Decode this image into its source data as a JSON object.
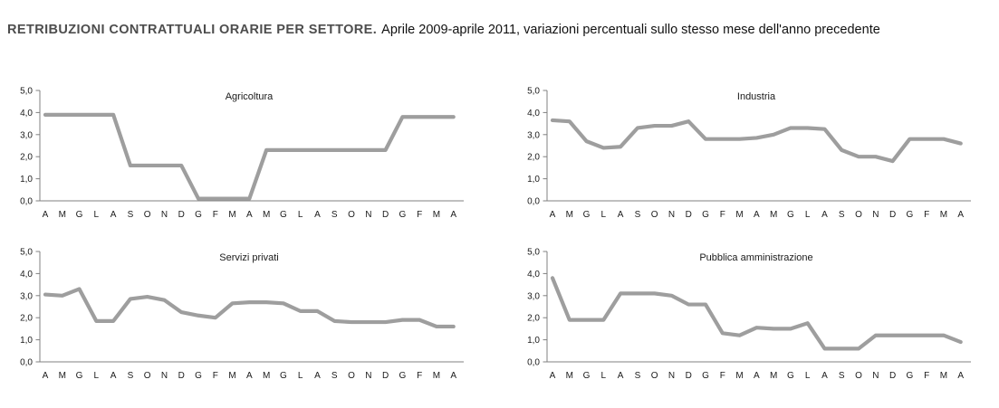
{
  "header": {
    "title_bold": "RETRIBUZIONI CONTRATTUALI ORARIE PER SETTORE.",
    "title_rest": "Aprile 2009-aprile 2011, variazioni percentuali sullo stesso mese dell'anno precedente"
  },
  "axis": {
    "y_tick_labels": [
      "5,0",
      "4,0",
      "3,0",
      "2,0",
      "1,0",
      "0,0"
    ],
    "y_tick_values": [
      5,
      4,
      3,
      2,
      1,
      0
    ],
    "x_labels": [
      "A",
      "M",
      "G",
      "L",
      "A",
      "S",
      "O",
      "N",
      "D",
      "G",
      "F",
      "M",
      "A",
      "M",
      "G",
      "L",
      "A",
      "S",
      "O",
      "N",
      "D",
      "G",
      "F",
      "M",
      "A"
    ],
    "ylim": [
      0,
      5
    ]
  },
  "colors": {
    "line": "#9e9e9e",
    "axis_line": "#808080",
    "tick_text": "#1a1a1a",
    "chart_title_text": "#1a1a1a",
    "header_bold": "#4d4d4d",
    "header_rest": "#111111"
  },
  "chart_data": [
    {
      "type": "line",
      "title": "Agricoltura",
      "categories": [
        "A",
        "M",
        "G",
        "L",
        "A",
        "S",
        "O",
        "N",
        "D",
        "G",
        "F",
        "M",
        "A",
        "M",
        "G",
        "L",
        "A",
        "S",
        "O",
        "N",
        "D",
        "G",
        "F",
        "M",
        "A"
      ],
      "values": [
        3.9,
        3.9,
        3.9,
        3.9,
        3.9,
        1.6,
        1.6,
        1.6,
        1.6,
        0.1,
        0.1,
        0.1,
        0.1,
        2.3,
        2.3,
        2.3,
        2.3,
        2.3,
        2.3,
        2.3,
        2.3,
        3.8,
        3.8,
        3.8,
        3.8
      ],
      "ylim": [
        0,
        5
      ],
      "grid": false,
      "legend": "none"
    },
    {
      "type": "line",
      "title": "Industria",
      "categories": [
        "A",
        "M",
        "G",
        "L",
        "A",
        "S",
        "O",
        "N",
        "D",
        "G",
        "F",
        "M",
        "A",
        "M",
        "G",
        "L",
        "A",
        "S",
        "O",
        "N",
        "D",
        "G",
        "F",
        "M",
        "A"
      ],
      "values": [
        3.65,
        3.6,
        2.7,
        2.4,
        2.45,
        3.3,
        3.4,
        3.4,
        3.6,
        2.8,
        2.8,
        2.8,
        2.85,
        3.0,
        3.3,
        3.3,
        3.25,
        2.3,
        2.0,
        2.0,
        1.8,
        2.8,
        2.8,
        2.8,
        2.6
      ],
      "ylim": [
        0,
        5
      ],
      "grid": false,
      "legend": "none"
    },
    {
      "type": "line",
      "title": "Servizi privati",
      "categories": [
        "A",
        "M",
        "G",
        "L",
        "A",
        "S",
        "O",
        "N",
        "D",
        "G",
        "F",
        "M",
        "A",
        "M",
        "G",
        "L",
        "A",
        "S",
        "O",
        "N",
        "D",
        "G",
        "F",
        "M",
        "A"
      ],
      "values": [
        3.05,
        3.0,
        3.3,
        1.85,
        1.85,
        2.85,
        2.95,
        2.8,
        2.25,
        2.1,
        2.0,
        2.65,
        2.7,
        2.7,
        2.65,
        2.3,
        2.3,
        1.85,
        1.8,
        1.8,
        1.8,
        1.9,
        1.9,
        1.6,
        1.6
      ],
      "ylim": [
        0,
        5
      ],
      "grid": false,
      "legend": "none"
    },
    {
      "type": "line",
      "title": "Pubblica amministrazione",
      "categories": [
        "A",
        "M",
        "G",
        "L",
        "A",
        "S",
        "O",
        "N",
        "D",
        "G",
        "F",
        "M",
        "A",
        "M",
        "G",
        "L",
        "A",
        "S",
        "O",
        "N",
        "D",
        "G",
        "F",
        "M",
        "A"
      ],
      "values": [
        3.8,
        1.9,
        1.9,
        1.9,
        3.1,
        3.1,
        3.1,
        3.0,
        2.6,
        2.6,
        1.3,
        1.2,
        1.55,
        1.5,
        1.5,
        1.75,
        0.6,
        0.6,
        0.6,
        1.2,
        1.2,
        1.2,
        1.2,
        1.2,
        0.9
      ],
      "ylim": [
        0,
        5
      ],
      "grid": false,
      "legend": "none"
    }
  ]
}
